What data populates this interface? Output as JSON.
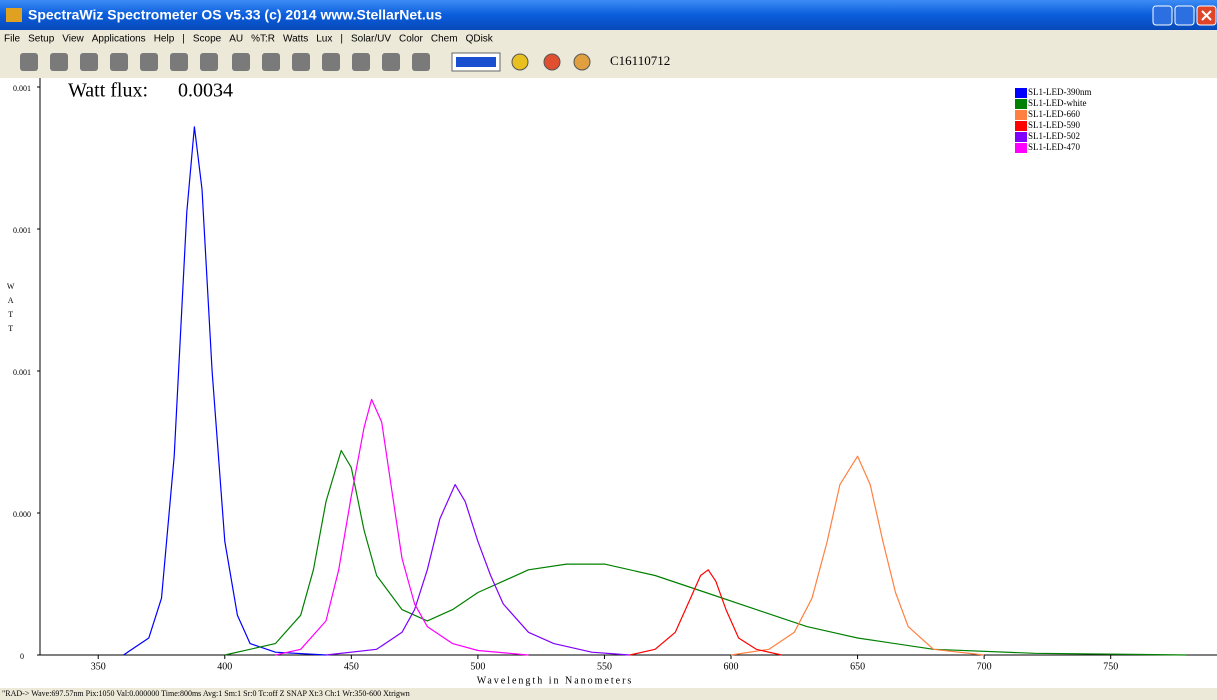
{
  "window": {
    "title": "SpectraWiz  Spectrometer OS v5.33 (c) 2014    www.StellarNet.us",
    "menu": [
      "File",
      "Setup",
      "View",
      "Applications",
      "Help",
      "|",
      "Scope",
      "AU",
      "%T:R",
      "Watts",
      "Lux",
      "|",
      "Solar/UV",
      "Color",
      "Chem",
      "QDisk"
    ],
    "toolbar_label": "C16110712",
    "status": "\"RAD->  Wave:697.57nm  Pix:1050  Val:0.000000  Time:800ms  Avg:1  Sm:1  Sr:0  Tc:off  Z  SNAP  Xt:3  Ch:1  Wr:350-600 Xtrigwn"
  },
  "chart_data": {
    "type": "line",
    "annotation_label": "Watt flux:",
    "annotation_value": 0.0034,
    "xlabel": "Wavelength in Nanometers",
    "ylabel": "WATT",
    "xlim": [
      327,
      792
    ],
    "xticks": [
      350,
      400,
      450,
      500,
      550,
      600,
      650,
      700,
      750
    ],
    "ylim": [
      0,
      0.001
    ],
    "yticks": [
      0,
      {
        "value": 0.00025,
        "label": "0.000"
      },
      {
        "value": 0.0005,
        "label": "0.001"
      },
      {
        "value": 0.00075,
        "label": "0.001"
      },
      {
        "value": 0.001,
        "label": "0.001"
      }
    ],
    "legend": "top-right",
    "series": [
      {
        "name": "SL1-LED-390nm",
        "color": "#0000ff",
        "x": [
          360,
          370,
          375,
          380,
          385,
          388,
          391,
          395,
          400,
          405,
          410,
          420,
          440
        ],
        "values": [
          0,
          3e-05,
          0.0001,
          0.00035,
          0.00078,
          0.00093,
          0.00082,
          0.0005,
          0.0002,
          7e-05,
          2e-05,
          5e-06,
          0
        ]
      },
      {
        "name": "SL1-LED-white",
        "color": "#008000",
        "x": [
          400,
          420,
          430,
          435,
          440,
          446,
          450,
          455,
          460,
          470,
          480,
          490,
          500,
          510,
          520,
          535,
          550,
          570,
          590,
          610,
          630,
          650,
          680,
          720,
          780
        ],
        "values": [
          0,
          2e-05,
          7e-05,
          0.00015,
          0.00027,
          0.00036,
          0.00033,
          0.00022,
          0.00014,
          8e-05,
          6e-05,
          8e-05,
          0.00011,
          0.00013,
          0.00015,
          0.00016,
          0.00016,
          0.00014,
          0.00011,
          8e-05,
          5e-05,
          3e-05,
          1e-05,
          3e-06,
          0
        ]
      },
      {
        "name": "SL1-LED-660",
        "color": "#ff8040",
        "x": [
          600,
          615,
          625,
          632,
          638,
          643,
          650,
          655,
          660,
          665,
          670,
          680,
          700
        ],
        "values": [
          0,
          1e-05,
          4e-05,
          0.0001,
          0.0002,
          0.0003,
          0.00035,
          0.0003,
          0.0002,
          0.00011,
          5e-05,
          1e-05,
          0
        ]
      },
      {
        "name": "SL1-LED-590",
        "color": "#ff0000",
        "x": [
          560,
          570,
          578,
          584,
          588,
          591,
          594,
          598,
          603,
          610,
          620
        ],
        "values": [
          0,
          1e-05,
          4e-05,
          0.0001,
          0.00014,
          0.00015,
          0.00013,
          8e-05,
          3e-05,
          1e-05,
          0
        ]
      },
      {
        "name": "SL1-LED-502",
        "color": "#8000ff",
        "x": [
          440,
          460,
          470,
          475,
          480,
          485,
          491,
          495,
          500,
          505,
          510,
          520,
          530,
          545,
          560
        ],
        "values": [
          0,
          1e-05,
          4e-05,
          8e-05,
          0.00015,
          0.00024,
          0.0003,
          0.00027,
          0.0002,
          0.00014,
          9e-05,
          4e-05,
          2e-05,
          5e-06,
          0
        ]
      },
      {
        "name": "SL1-LED-470",
        "color": "#ff00ff",
        "x": [
          420,
          430,
          440,
          445,
          450,
          455,
          458,
          462,
          466,
          470,
          475,
          480,
          490,
          500,
          520
        ],
        "values": [
          0,
          1e-05,
          6e-05,
          0.00015,
          0.00028,
          0.0004,
          0.00045,
          0.00041,
          0.00029,
          0.00017,
          9e-05,
          5e-05,
          2e-05,
          8e-06,
          0
        ]
      }
    ]
  }
}
